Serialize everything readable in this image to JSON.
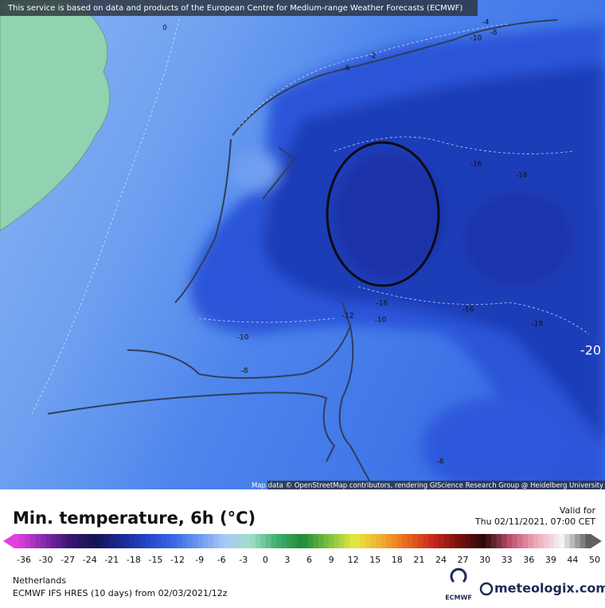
{
  "header": {
    "notice": "This service is based on data and products of the European Centre for Medium-range Weather Forecasts (ECMWF)"
  },
  "map": {
    "contour_labels": [
      "0",
      "-2",
      "-6",
      "-4",
      "-10",
      "-8",
      "-16",
      "-18",
      "-16",
      "-12",
      "-10",
      "-16",
      "-18",
      "-10",
      "-8",
      "-20",
      "-8"
    ],
    "attribution": "Map data © OpenStreetMap contributors, rendering GIScience Research Group @ Heidelberg University"
  },
  "legend": {
    "title": "Min. temperature, 6h (°C)",
    "valid_label": "Valid for",
    "valid_time": "Thu 02/11/2021, 07:00 CET",
    "ticks": [
      -36,
      -30,
      -27,
      -24,
      -21,
      -18,
      -15,
      -12,
      -9,
      -6,
      -3,
      0,
      3,
      6,
      9,
      12,
      15,
      18,
      21,
      24,
      27,
      30,
      33,
      36,
      39,
      44,
      50
    ]
  },
  "footer": {
    "region": "Netherlands",
    "model": "ECMWF IFS HRES (10 days)  from  02/03/2021/12z",
    "ecmwf_logo": "ECMWF",
    "brand": "meteologix.com"
  }
}
